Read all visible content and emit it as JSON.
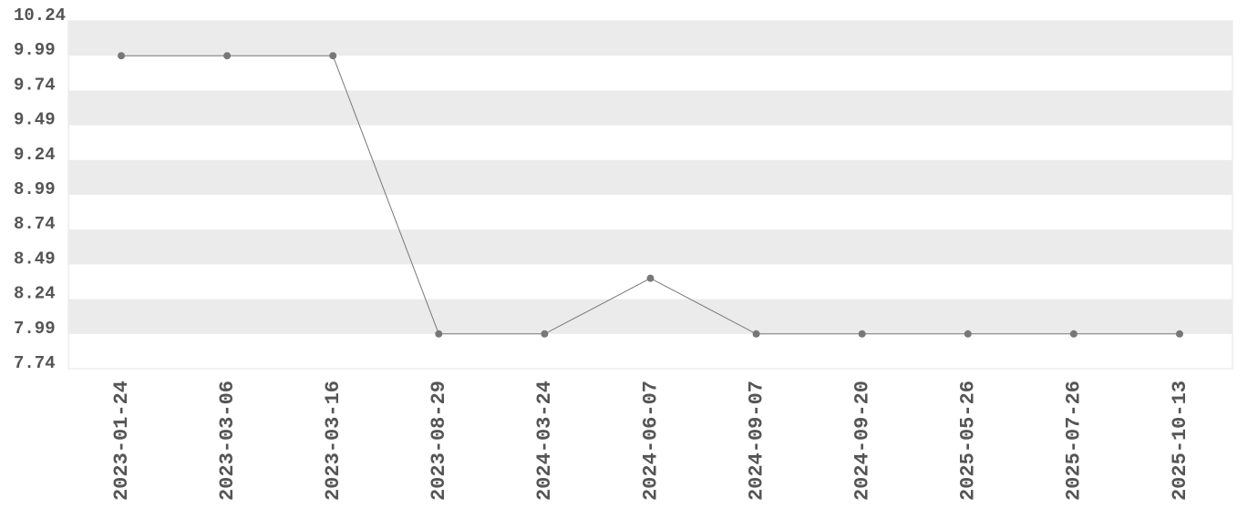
{
  "chart_data": {
    "type": "line",
    "categories": [
      "2023-01-24",
      "2023-03-06",
      "2023-03-16",
      "2023-08-29",
      "2024-03-24",
      "2024-06-07",
      "2024-09-07",
      "2024-09-20",
      "2025-05-26",
      "2025-07-26",
      "2025-10-13"
    ],
    "values": [
      9.99,
      9.99,
      9.99,
      7.99,
      7.99,
      8.39,
      7.99,
      7.99,
      7.99,
      7.99,
      7.99
    ],
    "color": "#777777",
    "ylim": [
      7.74,
      10.24
    ],
    "yticks": [
      7.74,
      7.99,
      8.24,
      8.49,
      8.74,
      8.99,
      9.24,
      9.49,
      9.74,
      9.99,
      10.24
    ],
    "grid": true
  }
}
